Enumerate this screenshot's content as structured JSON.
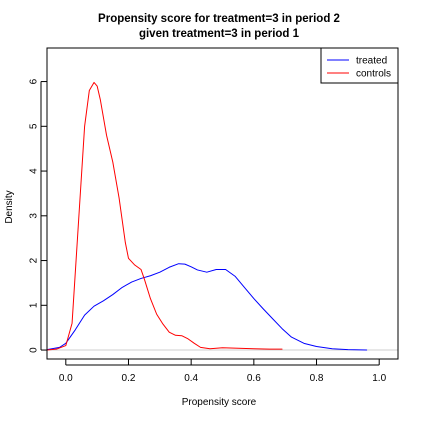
{
  "chart_data": {
    "type": "line",
    "title": [
      "Propensity score for treatment=3 in period 2",
      "given treatment=3 in period 1"
    ],
    "xlabel": "Propensity score",
    "ylabel": "Density",
    "xlim": [
      -0.06,
      1.06
    ],
    "ylim": [
      -0.2,
      6.75
    ],
    "xticks": [
      0.0,
      0.2,
      0.4,
      0.6,
      0.8,
      1.0
    ],
    "xtick_labels": [
      "0.0",
      "0.2",
      "0.4",
      "0.6",
      "0.8",
      "1.0"
    ],
    "yticks": [
      0,
      1,
      2,
      3,
      4,
      5,
      6
    ],
    "ytick_labels": [
      "0",
      "1",
      "2",
      "3",
      "4",
      "5",
      "6"
    ],
    "legend": {
      "position": "top-right",
      "entries": [
        {
          "label": "treated",
          "color": "#0000ff"
        },
        {
          "label": "controls",
          "color": "#ff0000"
        }
      ]
    },
    "series": [
      {
        "name": "treated",
        "color": "#0000ff",
        "x": [
          -0.06,
          -0.02,
          0.0,
          0.03,
          0.06,
          0.09,
          0.12,
          0.15,
          0.18,
          0.21,
          0.24,
          0.27,
          0.3,
          0.33,
          0.36,
          0.38,
          0.4,
          0.42,
          0.45,
          0.48,
          0.51,
          0.54,
          0.57,
          0.6,
          0.63,
          0.66,
          0.69,
          0.72,
          0.76,
          0.8,
          0.85,
          0.9,
          0.96
        ],
        "y": [
          0.01,
          0.06,
          0.15,
          0.45,
          0.78,
          0.98,
          1.1,
          1.24,
          1.4,
          1.52,
          1.6,
          1.66,
          1.74,
          1.85,
          1.93,
          1.92,
          1.86,
          1.79,
          1.74,
          1.8,
          1.8,
          1.65,
          1.4,
          1.15,
          0.92,
          0.7,
          0.48,
          0.29,
          0.15,
          0.08,
          0.03,
          0.01,
          0.0
        ]
      },
      {
        "name": "controls",
        "color": "#ff0000",
        "x": [
          -0.06,
          -0.03,
          0.0,
          0.02,
          0.04,
          0.06,
          0.075,
          0.09,
          0.1,
          0.11,
          0.13,
          0.15,
          0.17,
          0.19,
          0.2,
          0.22,
          0.24,
          0.25,
          0.27,
          0.29,
          0.31,
          0.33,
          0.35,
          0.37,
          0.39,
          0.41,
          0.43,
          0.46,
          0.5,
          0.55,
          0.6,
          0.65,
          0.69
        ],
        "y": [
          0.0,
          0.02,
          0.1,
          0.6,
          2.8,
          5.0,
          5.8,
          5.98,
          5.9,
          5.6,
          4.8,
          4.2,
          3.4,
          2.4,
          2.05,
          1.9,
          1.8,
          1.6,
          1.15,
          0.8,
          0.58,
          0.4,
          0.33,
          0.32,
          0.25,
          0.15,
          0.06,
          0.03,
          0.05,
          0.04,
          0.03,
          0.02,
          0.02
        ]
      }
    ]
  }
}
